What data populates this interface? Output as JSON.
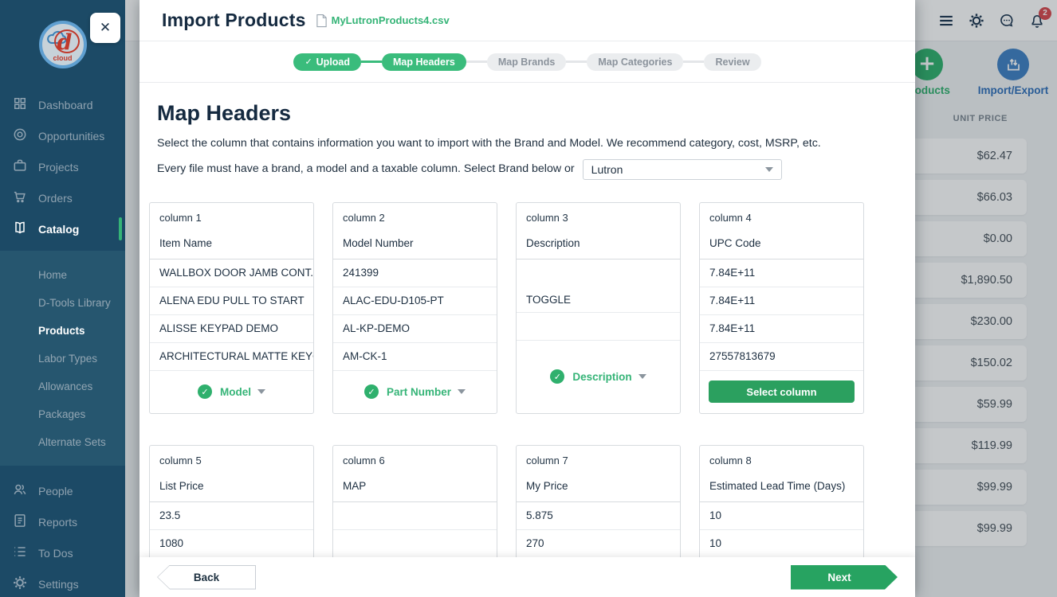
{
  "colors": {
    "accent_green": "#35b477",
    "accent_blue": "#3f80c4",
    "badge_red": "#d8494e",
    "sidebar_navy": "#1c4a66"
  },
  "sidebar": {
    "logo_text": "d",
    "logo_sub": "cloud",
    "main_items": [
      {
        "label": "Dashboard",
        "icon": "grid-icon",
        "active": false
      },
      {
        "label": "Opportunities",
        "icon": "target-icon",
        "active": false
      },
      {
        "label": "Projects",
        "icon": "briefcase-icon",
        "active": false
      },
      {
        "label": "Orders",
        "icon": "cart-icon",
        "active": false
      },
      {
        "label": "Catalog",
        "icon": "book-icon",
        "active": true
      }
    ],
    "sub_items": [
      {
        "label": "Home",
        "active": false
      },
      {
        "label": "D-Tools Library",
        "active": false
      },
      {
        "label": "Products",
        "active": true
      },
      {
        "label": "Labor Types",
        "active": false
      },
      {
        "label": "Allowances",
        "active": false
      },
      {
        "label": "Packages",
        "active": false
      },
      {
        "label": "Alternate Sets",
        "active": false
      }
    ],
    "bottom_items": [
      {
        "label": "People",
        "icon": "people-icon"
      },
      {
        "label": "Reports",
        "icon": "report-icon"
      },
      {
        "label": "To Dos",
        "icon": "todo-icon"
      },
      {
        "label": "Settings",
        "icon": "gear-icon"
      }
    ]
  },
  "topbar": {
    "icons": [
      "menu-icon",
      "gear-icon",
      "chat-icon",
      "bell-icon"
    ],
    "notification_count": "2"
  },
  "background": {
    "add_button_label": "products",
    "import_export_label": "Import/Export",
    "table": {
      "column_header": "UNIT PRICE",
      "unit_prices": [
        "$62.47",
        "$66.03",
        "$0.00",
        "$1,890.50",
        "$230.00",
        "$150.02",
        "$59.99",
        "$119.99",
        "$99.99",
        "$99.99"
      ]
    }
  },
  "modal": {
    "title": "Import Products",
    "file_name": "MyLutronProducts4.csv",
    "steps": [
      {
        "label": "Upload",
        "state": "done",
        "check": true
      },
      {
        "label": "Map Headers",
        "state": "active",
        "check": false
      },
      {
        "label": "Map Brands",
        "state": "upcoming",
        "check": false
      },
      {
        "label": "Map Categories",
        "state": "upcoming",
        "check": false
      },
      {
        "label": "Review",
        "state": "upcoming",
        "check": false
      }
    ],
    "heading": "Map Headers",
    "description_line1": "Select the column that contains information you want to import with the Brand and Model. We recommend category, cost, MSRP, etc.",
    "description_line2": "Every file must have a brand, a model and a taxable column. Select Brand below or",
    "brand_value": "Lutron",
    "columns_row1": [
      {
        "id": "column 1",
        "header": "Item Name",
        "rows": [
          {
            "text": "WALLBOX DOOR JAMB CONT..."
          },
          {
            "text": "ALENA EDU PULL TO START"
          },
          {
            "text": "ALISSE KEYPAD DEMO"
          },
          {
            "text": "ARCHITECTURAL MATTE KEYC..."
          }
        ],
        "mapping": {
          "kind": "select",
          "label": "Model"
        }
      },
      {
        "id": "column 2",
        "header": "Model Number",
        "rows": [
          {
            "text": "241399"
          },
          {
            "text": "ALAC-EDU-D105-PT"
          },
          {
            "text": "AL-KP-DEMO"
          },
          {
            "text": "AM-CK-1"
          }
        ],
        "mapping": {
          "kind": "select",
          "label": "Part Number"
        }
      },
      {
        "id": "column 3",
        "header": "Description",
        "rows": [
          {
            "text": "TOGGLE",
            "tall": true
          },
          {
            "text": ""
          }
        ],
        "mapping": {
          "kind": "select",
          "label": "Description"
        }
      },
      {
        "id": "column 4",
        "header": "UPC Code",
        "rows": [
          {
            "text": "7.84E+11"
          },
          {
            "text": "7.84E+11"
          },
          {
            "text": "7.84E+11"
          },
          {
            "text": "27557813679"
          }
        ],
        "mapping": {
          "kind": "button",
          "label": "Select column"
        }
      }
    ],
    "columns_row2": [
      {
        "id": "column 5",
        "header": "List Price",
        "rows": [
          {
            "text": "23.5"
          },
          {
            "text": "1080"
          },
          {
            "text": ""
          }
        ],
        "mapping": null
      },
      {
        "id": "column 6",
        "header": "MAP",
        "rows": [
          {
            "text": ""
          },
          {
            "text": ""
          },
          {
            "text": ""
          }
        ],
        "mapping": null
      },
      {
        "id": "column 7",
        "header": "My Price",
        "rows": [
          {
            "text": "5.875"
          },
          {
            "text": "270"
          },
          {
            "text": ""
          }
        ],
        "mapping": null
      },
      {
        "id": "column 8",
        "header": "Estimated Lead Time (Days)",
        "rows": [
          {
            "text": "10"
          },
          {
            "text": "10"
          },
          {
            "text": ""
          }
        ],
        "mapping": null
      }
    ],
    "back_label": "Back",
    "next_label": "Next"
  }
}
